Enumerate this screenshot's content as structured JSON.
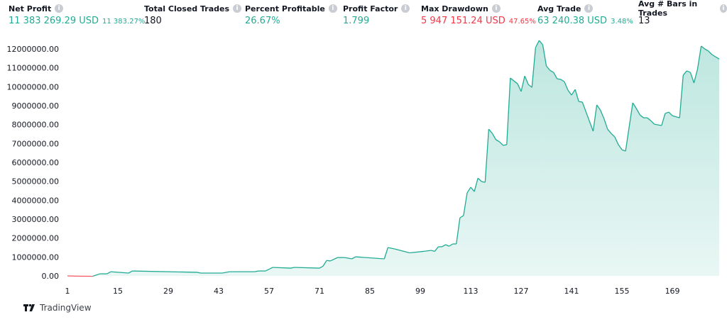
{
  "stats": [
    {
      "label": "Net Profit",
      "value": "11 383 269.29 USD",
      "sub": "11 383.27%",
      "color": "g"
    },
    {
      "label": "Total Closed Trades",
      "value": "180",
      "sub": "",
      "color": "n"
    },
    {
      "label": "Percent Profitable",
      "value": "26.67%",
      "sub": "",
      "color": "g"
    },
    {
      "label": "Profit Factor",
      "value": "1.799",
      "sub": "",
      "color": "g"
    },
    {
      "label": "Max Drawdown",
      "value": "5 947 151.24 USD",
      "sub": "47.65%",
      "color": "r"
    },
    {
      "label": "Avg Trade",
      "value": "63 240.38 USD",
      "sub": "3.48%",
      "color": "g"
    },
    {
      "label": "Avg # Bars in Trades",
      "value": "13",
      "sub": "",
      "color": "n"
    }
  ],
  "brand": {
    "name": "TradingView"
  },
  "colors": {
    "line": "#22ab94",
    "negative": "#f7525f",
    "fill": "#22ab94",
    "profit": "#22ab94",
    "loss": "#f23645"
  },
  "chart_data": {
    "type": "area",
    "xlim": [
      1,
      182
    ],
    "ylim": [
      0,
      12000000
    ],
    "xticks": [
      1,
      15,
      29,
      43,
      57,
      71,
      85,
      99,
      113,
      127,
      141,
      155,
      169
    ],
    "yticks": [
      0,
      1000000,
      2000000,
      3000000,
      4000000,
      5000000,
      6000000,
      7000000,
      8000000,
      9000000,
      10000000,
      11000000,
      12000000
    ],
    "ytick_labels": [
      "0.00",
      "1000000.00",
      "2000000.00",
      "3000000.00",
      "4000000.00",
      "5000000.00",
      "6000000.00",
      "7000000.00",
      "8000000.00",
      "9000000.00",
      "10000000.00",
      "11000000.00",
      "12000000.00"
    ],
    "points": [
      [
        1,
        0
      ],
      [
        4,
        -15000
      ],
      [
        8,
        -20000
      ],
      [
        10,
        110000
      ],
      [
        12,
        110000
      ],
      [
        13,
        220000
      ],
      [
        18,
        150000
      ],
      [
        19,
        260000
      ],
      [
        37,
        190000
      ],
      [
        38,
        150000
      ],
      [
        44,
        150000
      ],
      [
        46,
        220000
      ],
      [
        53,
        220000
      ],
      [
        54,
        260000
      ],
      [
        56,
        260000
      ],
      [
        58,
        450000
      ],
      [
        63,
        410000
      ],
      [
        64,
        450000
      ],
      [
        71,
        410000
      ],
      [
        72,
        520000
      ],
      [
        73,
        820000
      ],
      [
        74,
        790000
      ],
      [
        76,
        970000
      ],
      [
        78,
        970000
      ],
      [
        80,
        900000
      ],
      [
        81,
        1010000
      ],
      [
        89,
        900000
      ],
      [
        90,
        1500000
      ],
      [
        92,
        1420000
      ],
      [
        96,
        1220000
      ],
      [
        100,
        1300000
      ],
      [
        102,
        1350000
      ],
      [
        103,
        1300000
      ],
      [
        104,
        1540000
      ],
      [
        105,
        1540000
      ],
      [
        106,
        1650000
      ],
      [
        107,
        1570000
      ],
      [
        108,
        1690000
      ],
      [
        109,
        1690000
      ],
      [
        110,
        3070000
      ],
      [
        111,
        3190000
      ],
      [
        112,
        4390000
      ],
      [
        113,
        4690000
      ],
      [
        114,
        4460000
      ],
      [
        115,
        5170000
      ],
      [
        116,
        4990000
      ],
      [
        117,
        4950000
      ],
      [
        118,
        7760000
      ],
      [
        119,
        7530000
      ],
      [
        120,
        7200000
      ],
      [
        121,
        7090000
      ],
      [
        122,
        6900000
      ],
      [
        123,
        6940000
      ],
      [
        124,
        10460000
      ],
      [
        125,
        10310000
      ],
      [
        126,
        10160000
      ],
      [
        127,
        9750000
      ],
      [
        128,
        10570000
      ],
      [
        129,
        10120000
      ],
      [
        130,
        9970000
      ],
      [
        131,
        12070000
      ],
      [
        132,
        12450000
      ],
      [
        133,
        12220000
      ],
      [
        134,
        11100000
      ],
      [
        135,
        10870000
      ],
      [
        136,
        10760000
      ],
      [
        137,
        10420000
      ],
      [
        138,
        10390000
      ],
      [
        139,
        10270000
      ],
      [
        140,
        9820000
      ],
      [
        141,
        9560000
      ],
      [
        142,
        9860000
      ],
      [
        143,
        9220000
      ],
      [
        144,
        9190000
      ],
      [
        147,
        7650000
      ],
      [
        148,
        9040000
      ],
      [
        149,
        8770000
      ],
      [
        150,
        8320000
      ],
      [
        151,
        7760000
      ],
      [
        152,
        7530000
      ],
      [
        153,
        7350000
      ],
      [
        154,
        6940000
      ],
      [
        155,
        6670000
      ],
      [
        156,
        6600000
      ],
      [
        158,
        9150000
      ],
      [
        159,
        8850000
      ],
      [
        160,
        8510000
      ],
      [
        161,
        8360000
      ],
      [
        162,
        8360000
      ],
      [
        163,
        8210000
      ],
      [
        164,
        8020000
      ],
      [
        166,
        7950000
      ],
      [
        167,
        8590000
      ],
      [
        168,
        8660000
      ],
      [
        169,
        8470000
      ],
      [
        171,
        8360000
      ],
      [
        172,
        10610000
      ],
      [
        173,
        10840000
      ],
      [
        174,
        10760000
      ],
      [
        175,
        10200000
      ],
      [
        176,
        10950000
      ],
      [
        177,
        12150000
      ],
      [
        178,
        12000000
      ],
      [
        179,
        11890000
      ],
      [
        180,
        11700000
      ],
      [
        182,
        11470000
      ]
    ]
  }
}
